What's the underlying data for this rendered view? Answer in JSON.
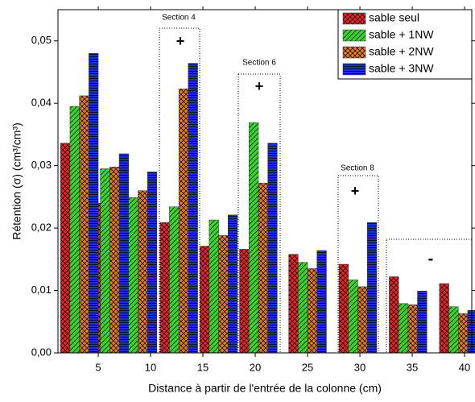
{
  "chart_data": {
    "type": "bar",
    "xlabel": "Distance à partir de l'entrée de la colonne (cm)",
    "ylabel": "Rétention (σ) (cm³/cm³)",
    "x": [
      3.2,
      6.1,
      8.8,
      12.7,
      16.5,
      20.3,
      25,
      29.8,
      34.6,
      39.4
    ],
    "series": [
      {
        "name": "sable seul",
        "color": "#e8262a",
        "values": [
          0.0336,
          0.024,
          0.0212,
          0.0209,
          0.0171,
          0.0166,
          0.0158,
          0.0142,
          0.0122,
          0.0111
        ]
      },
      {
        "name": "sable + 1NW",
        "color": "#39d42f",
        "values": [
          0.0395,
          0.0295,
          0.0249,
          0.0234,
          0.0213,
          0.0369,
          0.0145,
          0.0117,
          0.0079,
          0.0074
        ]
      },
      {
        "name": "sable + 2NW",
        "color": "#e07b2a",
        "values": [
          0.0412,
          0.0298,
          0.026,
          0.0423,
          0.0188,
          0.0272,
          0.0135,
          0.0106,
          0.0077,
          0.0063
        ]
      },
      {
        "name": "sable + 3NW",
        "color": "#1e2fe0",
        "values": [
          0.048,
          0.0319,
          0.029,
          0.0464,
          0.0221,
          0.0336,
          0.0164,
          0.0209,
          0.0099,
          0.0068
        ]
      }
    ],
    "xlim": [
      1.15,
      40.69
    ],
    "xticks": [
      5,
      10,
      15,
      20,
      25,
      30,
      35,
      40
    ],
    "ylim": [
      0,
      0.055
    ],
    "yticks": [
      {
        "value": 0,
        "label": "0,00"
      },
      {
        "value": 0.01,
        "label": "0,01"
      },
      {
        "value": 0.02,
        "label": "0,02"
      },
      {
        "value": 0.03,
        "label": "0,03"
      },
      {
        "value": 0.04,
        "label": "0,04"
      },
      {
        "value": 0.05,
        "label": "0,05"
      }
    ],
    "annotations": [
      "Section 4",
      "+",
      "Section 6",
      "+",
      "Section 8",
      "+",
      "-"
    ],
    "legend": "upper right"
  }
}
